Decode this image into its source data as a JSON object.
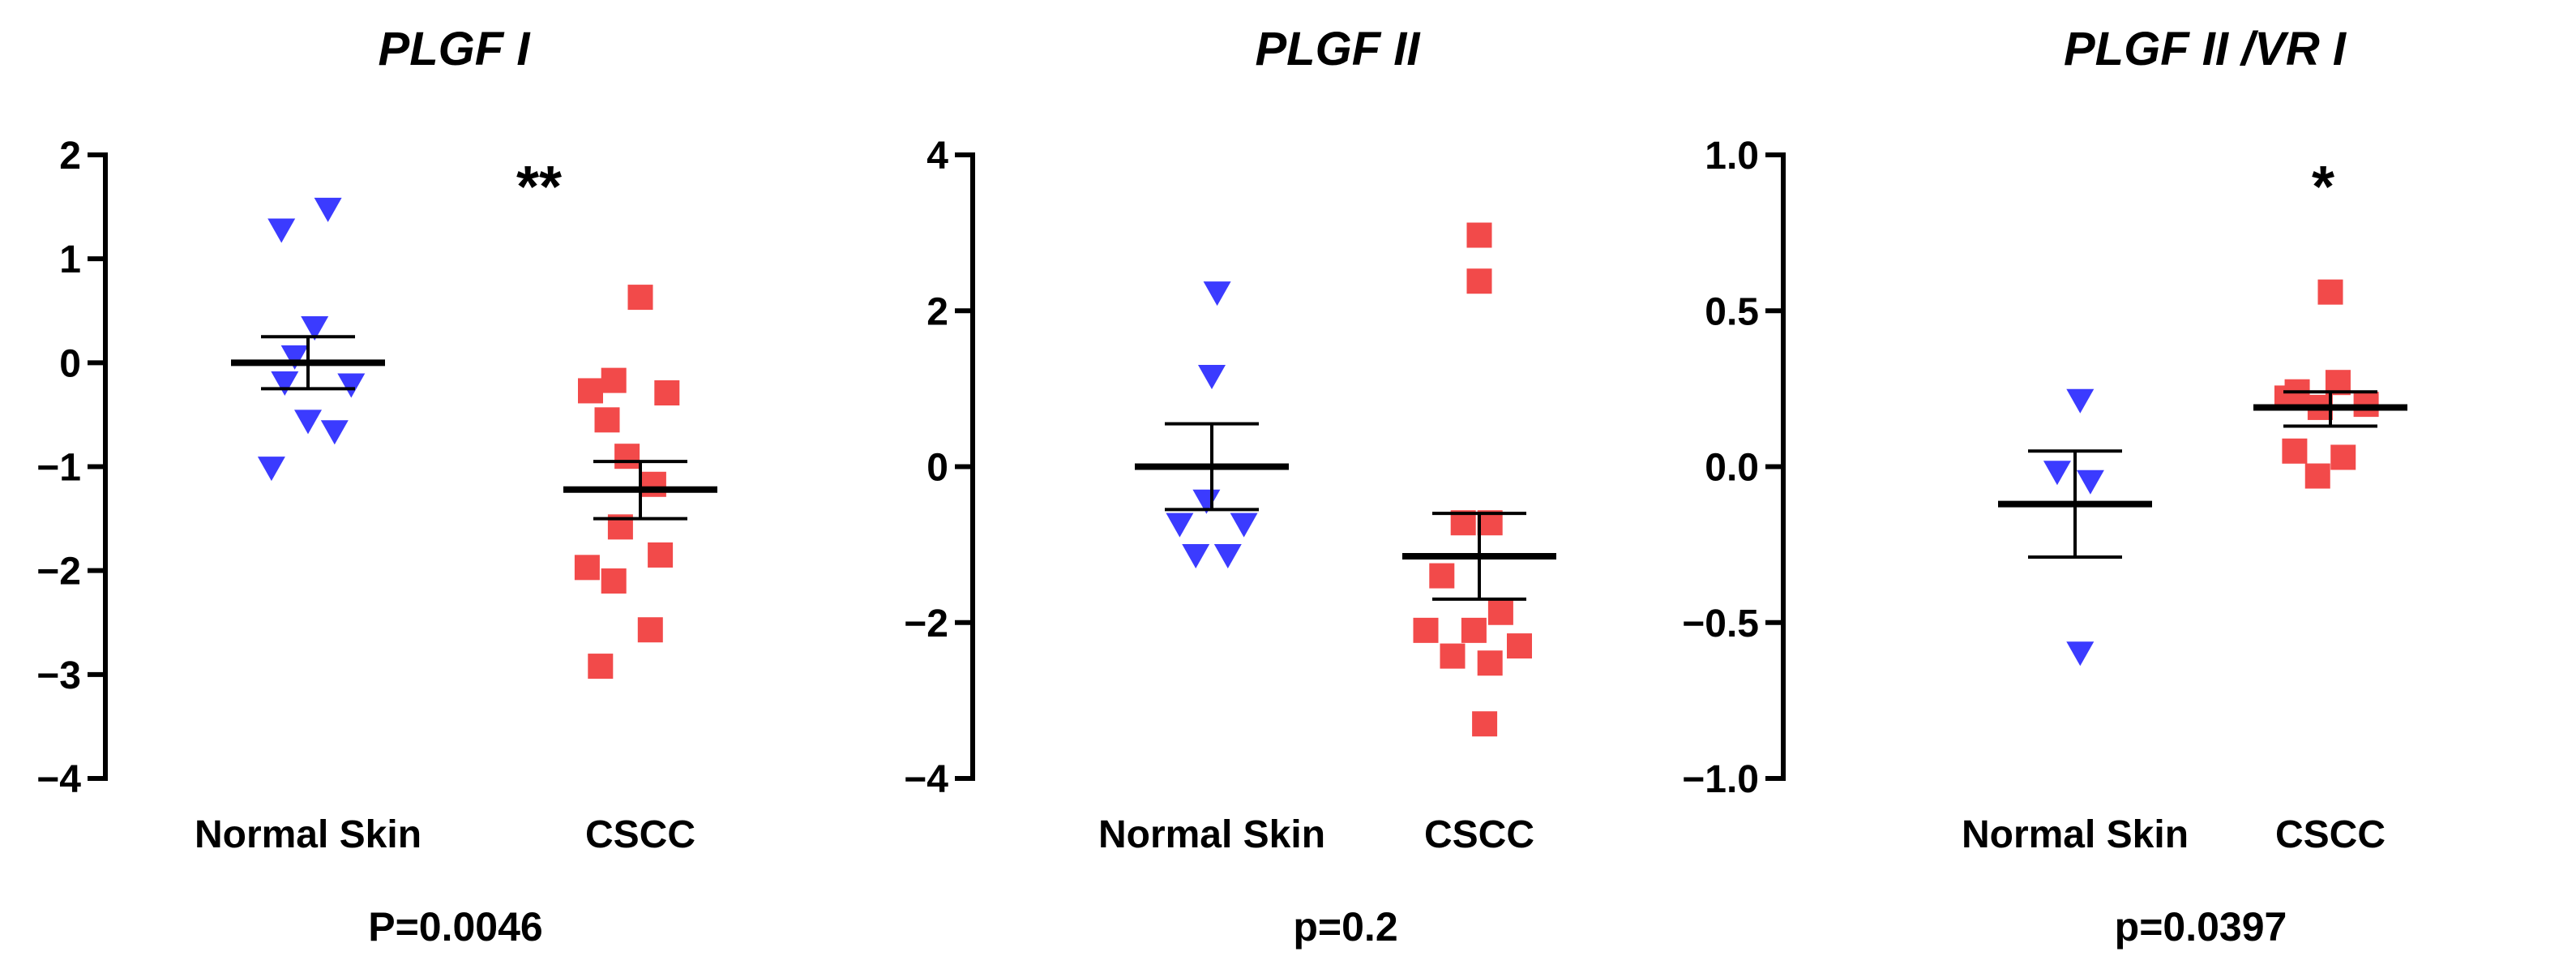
{
  "chart_data": [
    {
      "type": "scatter",
      "title": "PLGF I",
      "categories": [
        "Normal Skin",
        "CSCC"
      ],
      "ylim": [
        -4,
        2
      ],
      "yticks": [
        2,
        1,
        0,
        -1,
        -2,
        -3,
        -4
      ],
      "ytick_labels": [
        "2",
        "1",
        "0",
        "−1",
        "−2",
        "−3",
        "−4"
      ],
      "series": [
        {
          "name": "Normal Skin",
          "marker": "triangle-down",
          "color": "#3b3bff",
          "points": [
            {
              "x": 0.92,
              "y": 1.27
            },
            {
              "x": 1.06,
              "y": 1.47
            },
            {
              "x": 0.96,
              "y": 0.05
            },
            {
              "x": 1.02,
              "y": 0.33
            },
            {
              "x": 0.93,
              "y": -0.2
            },
            {
              "x": 1.13,
              "y": -0.22
            },
            {
              "x": 1.0,
              "y": -0.57
            },
            {
              "x": 1.08,
              "y": -0.67
            },
            {
              "x": 0.89,
              "y": -1.02
            }
          ],
          "mean": 0.0,
          "sem_upper": 0.25,
          "sem_lower": -0.25
        },
        {
          "name": "CSCC",
          "marker": "square",
          "color": "#f24a4a",
          "points": [
            {
              "x": 2.0,
              "y": 0.63
            },
            {
              "x": 1.85,
              "y": -0.27
            },
            {
              "x": 1.92,
              "y": -0.17
            },
            {
              "x": 2.08,
              "y": -0.29
            },
            {
              "x": 1.9,
              "y": -0.55
            },
            {
              "x": 1.96,
              "y": -0.9
            },
            {
              "x": 2.04,
              "y": -1.17
            },
            {
              "x": 1.94,
              "y": -1.58
            },
            {
              "x": 2.06,
              "y": -1.85
            },
            {
              "x": 1.84,
              "y": -1.97
            },
            {
              "x": 1.92,
              "y": -2.1
            },
            {
              "x": 2.03,
              "y": -2.57
            },
            {
              "x": 1.88,
              "y": -2.92
            }
          ],
          "mean": -1.22,
          "sem_upper": -0.95,
          "sem_lower": -1.5
        }
      ],
      "significance": "**",
      "p_value": "P=0.0046"
    },
    {
      "type": "scatter",
      "title": "PLGF II",
      "categories": [
        "Normal Skin",
        "CSCC"
      ],
      "ylim": [
        -4,
        4
      ],
      "yticks": [
        4,
        2,
        0,
        -2,
        -4
      ],
      "ytick_labels": [
        "4",
        "2",
        "0",
        "−2",
        "−4"
      ],
      "series": [
        {
          "name": "Normal Skin",
          "marker": "triangle-down",
          "color": "#3b3bff",
          "points": [
            {
              "x": 1.02,
              "y": 2.22
            },
            {
              "x": 1.0,
              "y": 1.15
            },
            {
              "x": 0.98,
              "y": -0.45
            },
            {
              "x": 0.88,
              "y": -0.75
            },
            {
              "x": 1.12,
              "y": -0.75
            },
            {
              "x": 0.94,
              "y": -1.15
            },
            {
              "x": 1.06,
              "y": -1.15
            }
          ],
          "mean": 0.0,
          "sem_upper": 0.55,
          "sem_lower": -0.55
        },
        {
          "name": "CSCC",
          "marker": "square",
          "color": "#f24a4a",
          "points": [
            {
              "x": 2.0,
              "y": 2.97
            },
            {
              "x": 2.0,
              "y": 2.38
            },
            {
              "x": 1.94,
              "y": -0.72
            },
            {
              "x": 2.04,
              "y": -0.72
            },
            {
              "x": 1.86,
              "y": -1.4
            },
            {
              "x": 2.08,
              "y": -1.87
            },
            {
              "x": 1.8,
              "y": -2.1
            },
            {
              "x": 1.98,
              "y": -2.1
            },
            {
              "x": 1.9,
              "y": -2.43
            },
            {
              "x": 2.04,
              "y": -2.52
            },
            {
              "x": 2.15,
              "y": -2.3
            },
            {
              "x": 2.02,
              "y": -3.3
            }
          ],
          "mean": -1.15,
          "sem_upper": -0.6,
          "sem_lower": -1.7
        }
      ],
      "significance": "",
      "p_value": "p=0.2"
    },
    {
      "type": "scatter",
      "title": "PLGF II /VR I",
      "categories": [
        "Normal Skin",
        "CSCC"
      ],
      "ylim": [
        -1.0,
        1.0
      ],
      "yticks": [
        1.0,
        0.5,
        0.0,
        -0.5,
        -1.0
      ],
      "ytick_labels": [
        "1.0",
        "0.5",
        "0.0",
        "−0.5",
        "−1.0"
      ],
      "series": [
        {
          "name": "Normal Skin",
          "marker": "triangle-down",
          "color": "#3b3bff",
          "points": [
            {
              "x": 1.02,
              "y": 0.21
            },
            {
              "x": 0.93,
              "y": -0.02
            },
            {
              "x": 1.06,
              "y": -0.05
            },
            {
              "x": 1.02,
              "y": -0.6
            }
          ],
          "mean": -0.12,
          "sem_upper": 0.05,
          "sem_lower": -0.29
        },
        {
          "name": "CSCC",
          "marker": "square",
          "color": "#f24a4a",
          "points": [
            {
              "x": 2.0,
              "y": 0.56
            },
            {
              "x": 1.83,
              "y": 0.22
            },
            {
              "x": 1.87,
              "y": 0.24
            },
            {
              "x": 2.03,
              "y": 0.27
            },
            {
              "x": 2.14,
              "y": 0.2
            },
            {
              "x": 1.96,
              "y": 0.19
            },
            {
              "x": 1.86,
              "y": 0.05
            },
            {
              "x": 2.05,
              "y": 0.03
            },
            {
              "x": 1.95,
              "y": -0.03
            }
          ],
          "mean": 0.19,
          "sem_upper": 0.24,
          "sem_lower": 0.13
        }
      ],
      "significance": "*",
      "p_value": "p=0.0397"
    }
  ]
}
